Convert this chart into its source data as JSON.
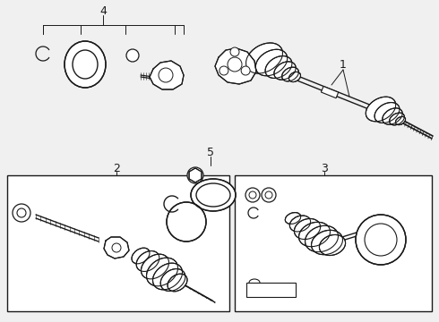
{
  "bg_color": "#f0f0f0",
  "line_color": "#1a1a1a",
  "box_color": "#ffffff",
  "fig_width": 4.9,
  "fig_height": 3.6,
  "dpi": 100
}
